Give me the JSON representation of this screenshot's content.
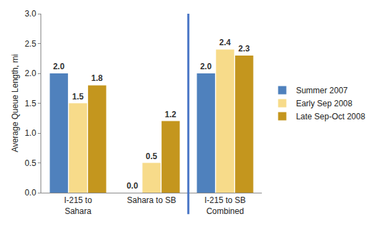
{
  "chart_data": {
    "type": "bar",
    "y_label": "Average Queue Length, mi",
    "categories": [
      "I-215 to Sahara",
      "Sahara to SB",
      "I-215 to SB Combined"
    ],
    "series": [
      {
        "name": "Summer 2007",
        "color": "#4f81bd",
        "values": [
          2.0,
          0.0,
          2.0
        ],
        "value_labels": [
          "2.0",
          "0.0",
          "2.0"
        ]
      },
      {
        "name": "Early Sep 2008",
        "color": "#f7db8a",
        "values": [
          1.5,
          0.5,
          2.4
        ],
        "value_labels": [
          "1.5",
          "0.5",
          "2.4"
        ]
      },
      {
        "name": "Late Sep-Oct 2008",
        "color": "#c4961e",
        "values": [
          1.8,
          1.2,
          2.3
        ],
        "value_labels": [
          "1.8",
          "1.2",
          "2.3"
        ]
      }
    ],
    "ylim": [
      0,
      3
    ],
    "yticks": [
      {
        "value": 0,
        "label": "0.0"
      },
      {
        "value": 0.5,
        "label": "0.5"
      },
      {
        "value": 1,
        "label": "1.0"
      },
      {
        "value": 1.5,
        "label": "1.5"
      },
      {
        "value": 2,
        "label": "2.0"
      },
      {
        "value": 2.5,
        "label": "2.5"
      },
      {
        "value": 3,
        "label": "3.0"
      }
    ],
    "grid": false,
    "legend": "right",
    "data_labels": true
  }
}
